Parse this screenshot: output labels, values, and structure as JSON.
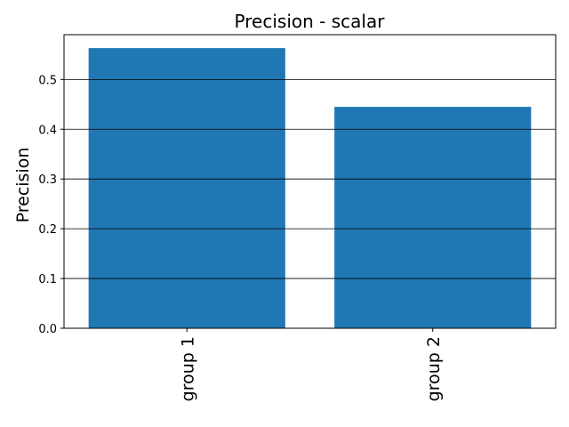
{
  "chart_data": {
    "type": "bar",
    "title": "Precision - scalar",
    "xlabel": "",
    "ylabel": "Precision",
    "categories": [
      "group 1",
      "group 2"
    ],
    "values": [
      0.563,
      0.445
    ],
    "ylim": [
      0,
      0.59
    ],
    "yticks": [
      "0.0",
      "0.1",
      "0.2",
      "0.3",
      "0.4",
      "0.5"
    ],
    "grid": "horizontal",
    "bar_color": "#1f77b4"
  }
}
